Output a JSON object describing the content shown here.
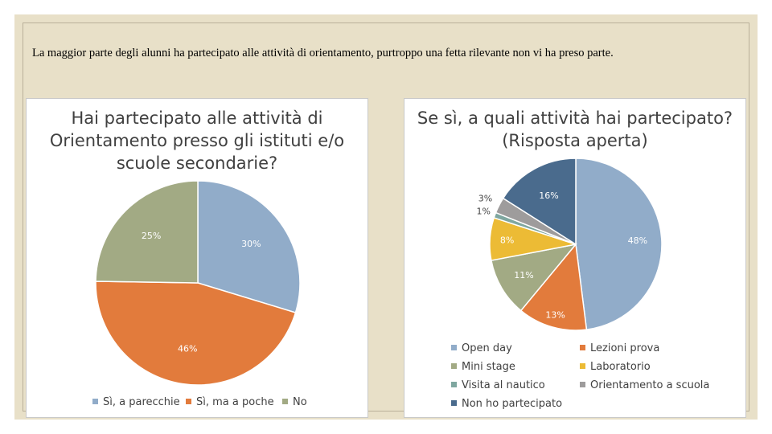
{
  "caption": "La maggior parte degli alunni ha partecipato alle attività di orientamento, purtroppo una fetta rilevante non vi ha preso parte.",
  "chart_data": [
    {
      "type": "pie",
      "title_lines": [
        "Hai partecipato alle attività di",
        "Orientamento presso gli istituti e/o",
        "scuole secondarie?"
      ],
      "categories": [
        "Sì, a parecchie",
        "Sì, ma a poche",
        "No"
      ],
      "values": [
        30,
        46,
        25
      ],
      "labels": [
        "30%",
        "46%",
        "25%"
      ],
      "colors": [
        "#91acc9",
        "#e27b3c",
        "#a2aa84"
      ],
      "legend": "bottom"
    },
    {
      "type": "pie",
      "title_lines": [
        "Se sì, a quali attività hai partecipato?",
        "(Risposta aperta)"
      ],
      "categories": [
        "Open day",
        "Lezioni prova",
        "Mini stage",
        "Laboratorio",
        "Visita al nautico",
        "Orientamento a scuola",
        "Non ho partecipato"
      ],
      "values": [
        48,
        13,
        11,
        8,
        1,
        3,
        16
      ],
      "labels": [
        "48%",
        "13%",
        "11%",
        "8%",
        "1%",
        "3%",
        "16%"
      ],
      "colors": [
        "#91acc9",
        "#e27b3c",
        "#a2aa84",
        "#ecbb35",
        "#7fa7a0",
        "#9e9c9c",
        "#4a6b8d"
      ],
      "legend": "bottom"
    }
  ]
}
